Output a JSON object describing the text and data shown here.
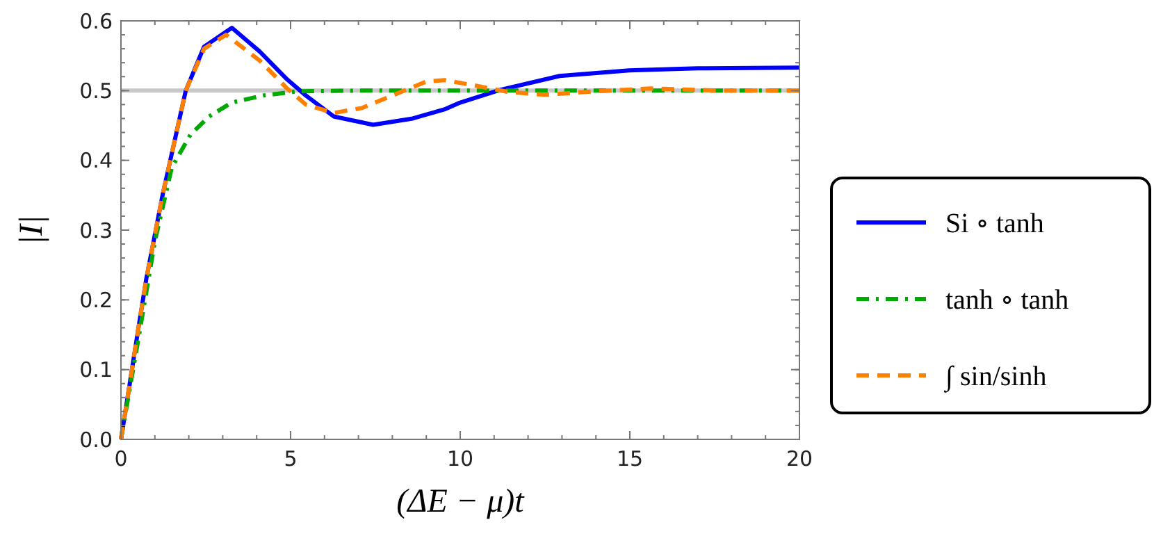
{
  "chart_data": {
    "type": "line",
    "xlabel": "(ΔE − μ)t",
    "ylabel": "|I|",
    "xlim": [
      0,
      20
    ],
    "ylim": [
      0,
      0.6
    ],
    "xticks": [
      0,
      5,
      10,
      15,
      20
    ],
    "yticks": [
      {
        "value": 0,
        "label": "0.0"
      },
      {
        "value": 0.1,
        "label": "0.1"
      },
      {
        "value": 0.2,
        "label": "0.2"
      },
      {
        "value": 0.3,
        "label": "0.3"
      },
      {
        "value": 0.4,
        "label": "0.4"
      },
      {
        "value": 0.5,
        "label": "0.5"
      },
      {
        "value": 0.6,
        "label": "0.6"
      }
    ],
    "grid": false,
    "legend": "right",
    "marker": "none",
    "ref_lines": [
      {
        "axis": "y",
        "value": 0.5,
        "color": "#c8c8c8"
      }
    ],
    "series": [
      {
        "name": "Si ∘ tanh",
        "color": "#0000ff",
        "line_style": "solid",
        "x": [
          0,
          0.25,
          0.5,
          0.75,
          1.23,
          1.91,
          2.45,
          3.27,
          4.09,
          4.9,
          5.45,
          6.27,
          7.43,
          8.6,
          9.53,
          9.95,
          11.17,
          12.93,
          14.98,
          17,
          20
        ],
        "values": [
          0,
          0.077,
          0.155,
          0.231,
          0.351,
          0.5,
          0.563,
          0.59,
          0.556,
          0.516,
          0.493,
          0.463,
          0.451,
          0.46,
          0.473,
          0.482,
          0.501,
          0.521,
          0.529,
          0.532,
          0.533
        ]
      },
      {
        "name": "tanh ∘ tanh",
        "color": "#00aa00",
        "line_style": "dashdot",
        "x": [
          0,
          0.5,
          1,
          1.5,
          2.05,
          2.6,
          3.27,
          4.2,
          5.2,
          7,
          10,
          15,
          20
        ],
        "values": [
          0,
          0.14,
          0.284,
          0.39,
          0.437,
          0.463,
          0.483,
          0.493,
          0.499,
          0.5,
          0.5,
          0.5,
          0.5
        ]
      },
      {
        "name": "∫ sin/sinh",
        "color": "#ff8000",
        "line_style": "dashed",
        "x": [
          0,
          0.25,
          0.5,
          0.75,
          1.23,
          1.91,
          2.45,
          3.1,
          4.09,
          4.9,
          5.45,
          6.27,
          7.1,
          7.9,
          9,
          9.54,
          10.35,
          11.44,
          12.5,
          14,
          15.6,
          17.7,
          20
        ],
        "values": [
          0,
          0.077,
          0.155,
          0.231,
          0.351,
          0.5,
          0.56,
          0.58,
          0.543,
          0.503,
          0.48,
          0.468,
          0.475,
          0.491,
          0.513,
          0.515,
          0.508,
          0.498,
          0.494,
          0.499,
          0.503,
          0.5,
          0.5
        ]
      }
    ]
  }
}
